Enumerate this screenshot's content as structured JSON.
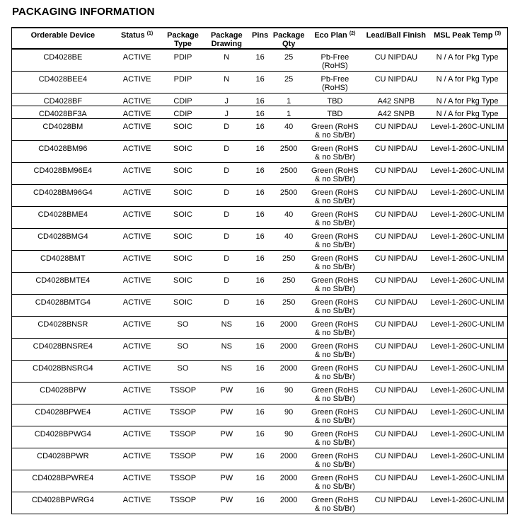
{
  "title": "PACKAGING INFORMATION",
  "columns": [
    {
      "label": "Orderable Device",
      "note": ""
    },
    {
      "label": "Status",
      "note": "(1)"
    },
    {
      "label": "Package Type",
      "note": ""
    },
    {
      "label": "Package Drawing",
      "note": ""
    },
    {
      "label": "Pins",
      "note": ""
    },
    {
      "label": "Package Qty",
      "note": ""
    },
    {
      "label": "Eco Plan",
      "note": "(2)"
    },
    {
      "label": "Lead/Ball Finish",
      "note": ""
    },
    {
      "label": "MSL Peak Temp",
      "note": "(3)"
    }
  ],
  "rows": [
    [
      "CD4028BE",
      "ACTIVE",
      "PDIP",
      "N",
      "16",
      "25",
      "Pb-Free (RoHS)",
      "CU NIPDAU",
      "N / A for Pkg Type"
    ],
    [
      "CD4028BEE4",
      "ACTIVE",
      "PDIP",
      "N",
      "16",
      "25",
      "Pb-Free (RoHS)",
      "CU NIPDAU",
      "N / A for Pkg Type"
    ],
    [
      "CD4028BF",
      "ACTIVE",
      "CDIP",
      "J",
      "16",
      "1",
      "TBD",
      "A42 SNPB",
      "N / A for Pkg Type"
    ],
    [
      "CD4028BF3A",
      "ACTIVE",
      "CDIP",
      "J",
      "16",
      "1",
      "TBD",
      "A42 SNPB",
      "N / A for Pkg Type"
    ],
    [
      "CD4028BM",
      "ACTIVE",
      "SOIC",
      "D",
      "16",
      "40",
      "Green (RoHS & no Sb/Br)",
      "CU NIPDAU",
      "Level-1-260C-UNLIM"
    ],
    [
      "CD4028BM96",
      "ACTIVE",
      "SOIC",
      "D",
      "16",
      "2500",
      "Green (RoHS & no Sb/Br)",
      "CU NIPDAU",
      "Level-1-260C-UNLIM"
    ],
    [
      "CD4028BM96E4",
      "ACTIVE",
      "SOIC",
      "D",
      "16",
      "2500",
      "Green (RoHS & no Sb/Br)",
      "CU NIPDAU",
      "Level-1-260C-UNLIM"
    ],
    [
      "CD4028BM96G4",
      "ACTIVE",
      "SOIC",
      "D",
      "16",
      "2500",
      "Green (RoHS & no Sb/Br)",
      "CU NIPDAU",
      "Level-1-260C-UNLIM"
    ],
    [
      "CD4028BME4",
      "ACTIVE",
      "SOIC",
      "D",
      "16",
      "40",
      "Green (RoHS & no Sb/Br)",
      "CU NIPDAU",
      "Level-1-260C-UNLIM"
    ],
    [
      "CD4028BMG4",
      "ACTIVE",
      "SOIC",
      "D",
      "16",
      "40",
      "Green (RoHS & no Sb/Br)",
      "CU NIPDAU",
      "Level-1-260C-UNLIM"
    ],
    [
      "CD4028BMT",
      "ACTIVE",
      "SOIC",
      "D",
      "16",
      "250",
      "Green (RoHS & no Sb/Br)",
      "CU NIPDAU",
      "Level-1-260C-UNLIM"
    ],
    [
      "CD4028BMTE4",
      "ACTIVE",
      "SOIC",
      "D",
      "16",
      "250",
      "Green (RoHS & no Sb/Br)",
      "CU NIPDAU",
      "Level-1-260C-UNLIM"
    ],
    [
      "CD4028BMTG4",
      "ACTIVE",
      "SOIC",
      "D",
      "16",
      "250",
      "Green (RoHS & no Sb/Br)",
      "CU NIPDAU",
      "Level-1-260C-UNLIM"
    ],
    [
      "CD4028BNSR",
      "ACTIVE",
      "SO",
      "NS",
      "16",
      "2000",
      "Green (RoHS & no Sb/Br)",
      "CU NIPDAU",
      "Level-1-260C-UNLIM"
    ],
    [
      "CD4028BNSRE4",
      "ACTIVE",
      "SO",
      "NS",
      "16",
      "2000",
      "Green (RoHS & no Sb/Br)",
      "CU NIPDAU",
      "Level-1-260C-UNLIM"
    ],
    [
      "CD4028BNSRG4",
      "ACTIVE",
      "SO",
      "NS",
      "16",
      "2000",
      "Green (RoHS & no Sb/Br)",
      "CU NIPDAU",
      "Level-1-260C-UNLIM"
    ],
    [
      "CD4028BPW",
      "ACTIVE",
      "TSSOP",
      "PW",
      "16",
      "90",
      "Green (RoHS & no Sb/Br)",
      "CU NIPDAU",
      "Level-1-260C-UNLIM"
    ],
    [
      "CD4028BPWE4",
      "ACTIVE",
      "TSSOP",
      "PW",
      "16",
      "90",
      "Green (RoHS & no Sb/Br)",
      "CU NIPDAU",
      "Level-1-260C-UNLIM"
    ],
    [
      "CD4028BPWG4",
      "ACTIVE",
      "TSSOP",
      "PW",
      "16",
      "90",
      "Green (RoHS & no Sb/Br)",
      "CU NIPDAU",
      "Level-1-260C-UNLIM"
    ],
    [
      "CD4028BPWR",
      "ACTIVE",
      "TSSOP",
      "PW",
      "16",
      "2000",
      "Green (RoHS & no Sb/Br)",
      "CU NIPDAU",
      "Level-1-260C-UNLIM"
    ],
    [
      "CD4028BPWRE4",
      "ACTIVE",
      "TSSOP",
      "PW",
      "16",
      "2000",
      "Green (RoHS & no Sb/Br)",
      "CU NIPDAU",
      "Level-1-260C-UNLIM"
    ],
    [
      "CD4028BPWRG4",
      "ACTIVE",
      "TSSOP",
      "PW",
      "16",
      "2000",
      "Green (RoHS & no Sb/Br)",
      "CU NIPDAU",
      "Level-1-260C-UNLIM"
    ]
  ]
}
